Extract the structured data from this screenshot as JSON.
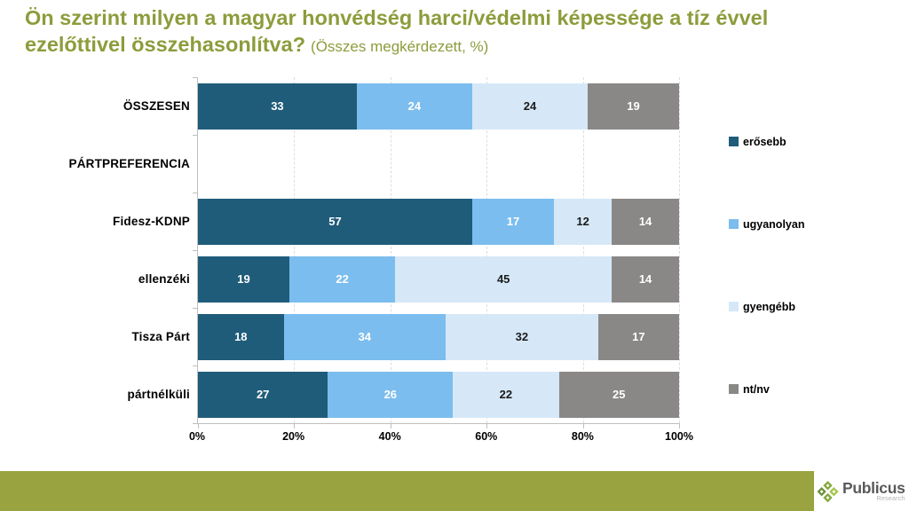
{
  "title": {
    "line1": "Ön szerint milyen a magyar honvédség harci/védelmi képessége a tíz évvel",
    "line2": "ezelőttivel összehasonlítva?",
    "subtitle": "(Összes megkérdezett, %)"
  },
  "chart_data": {
    "type": "bar",
    "orientation": "horizontal",
    "stacked": true,
    "unit": "%",
    "categories": [
      "ÖSSZESEN",
      "PÁRTPREFERENCIA",
      "Fidesz-KDNP",
      "ellenzéki",
      "Tisza Párt",
      "pártnélküli"
    ],
    "series": [
      {
        "name": "erősebb",
        "color": "#1F5C7A",
        "label_color": "#FFFFFF",
        "values": [
          33,
          null,
          57,
          19,
          18,
          27
        ]
      },
      {
        "name": "ugyanolyan",
        "color": "#7BBDEE",
        "label_color": "#FFFFFF",
        "values": [
          24,
          null,
          17,
          22,
          34,
          26
        ]
      },
      {
        "name": "gyengébb",
        "color": "#D6E8F8",
        "label_color": "#1A1A1A",
        "values": [
          24,
          null,
          12,
          45,
          32,
          22
        ]
      },
      {
        "name": "nt/nv",
        "color": "#8A8886",
        "label_color": "#FFFFFF",
        "values": [
          19,
          null,
          14,
          14,
          17,
          25
        ]
      }
    ],
    "x_ticks": [
      "0%",
      "20%",
      "40%",
      "60%",
      "80%",
      "100%"
    ],
    "xlim": [
      0,
      100
    ],
    "grid": "vertical-dashed",
    "legend_position": "right"
  },
  "branding": {
    "logo_text": "Publicus",
    "logo_subtext": "Research",
    "accent_olive_title": "#8D9C3B",
    "accent_olive_bar": "#99A33F",
    "logo_green_dark": "#6E913A",
    "logo_green_mid": "#83A93C",
    "logo_green_light": "#A5C54B"
  }
}
